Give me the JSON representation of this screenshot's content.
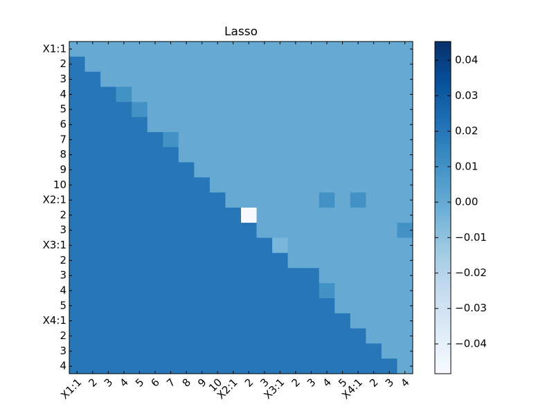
{
  "chart_data": {
    "type": "heatmap",
    "title": "Lasso",
    "x_categories": [
      "X1:1",
      "2",
      "3",
      "4",
      "5",
      "6",
      "7",
      "8",
      "9",
      "10",
      "X2:1",
      "2",
      "3",
      "X3:1",
      "2",
      "3",
      "4",
      "5",
      "X4:1",
      "2",
      "3",
      "4"
    ],
    "y_categories": [
      "X1:1",
      "2",
      "3",
      "4",
      "5",
      "6",
      "7",
      "8",
      "9",
      "10",
      "X2:1",
      "2",
      "3",
      "X3:1",
      "2",
      "3",
      "4",
      "5",
      "X4:1",
      "2",
      "3",
      "4"
    ],
    "values": [
      [
        0,
        0,
        0,
        0,
        0,
        0,
        0,
        0,
        0,
        0,
        0,
        0,
        0,
        0,
        0,
        0,
        0,
        0,
        0,
        0,
        0,
        0
      ],
      [
        0.02,
        0,
        0,
        0,
        0,
        0,
        0,
        0,
        0,
        0,
        0,
        0,
        0,
        0,
        0,
        0,
        0,
        0,
        0,
        0,
        0,
        0
      ],
      [
        0.02,
        0.02,
        0,
        0,
        0,
        0,
        0,
        0,
        0,
        0,
        0,
        0,
        0,
        0,
        0,
        0,
        0,
        0,
        0,
        0,
        0,
        0
      ],
      [
        0.02,
        0.02,
        0.02,
        0.01,
        0,
        0,
        0,
        0,
        0,
        0,
        0,
        0,
        0,
        0,
        0,
        0,
        0,
        0,
        0,
        0,
        0,
        0
      ],
      [
        0.02,
        0.02,
        0.02,
        0.02,
        0.01,
        0,
        0,
        0,
        0,
        0,
        0,
        0,
        0,
        0,
        0,
        0,
        0,
        0,
        0,
        0,
        0,
        0
      ],
      [
        0.02,
        0.02,
        0.02,
        0.02,
        0.02,
        0,
        0,
        0,
        0,
        0,
        0,
        0,
        0,
        0,
        0,
        0,
        0,
        0,
        0,
        0,
        0,
        0
      ],
      [
        0.02,
        0.02,
        0.02,
        0.02,
        0.02,
        0.02,
        0.01,
        0,
        0,
        0,
        0,
        0,
        0,
        0,
        0,
        0,
        0,
        0,
        0,
        0,
        0,
        0
      ],
      [
        0.02,
        0.02,
        0.02,
        0.02,
        0.02,
        0.02,
        0.02,
        0,
        0,
        0,
        0,
        0,
        0,
        0,
        0,
        0,
        0,
        0,
        0,
        0,
        0,
        0
      ],
      [
        0.02,
        0.02,
        0.02,
        0.02,
        0.02,
        0.02,
        0.02,
        0.02,
        0,
        0,
        0,
        0,
        0,
        0,
        0,
        0,
        0,
        0,
        0,
        0,
        0,
        0
      ],
      [
        0.02,
        0.02,
        0.02,
        0.02,
        0.02,
        0.02,
        0.02,
        0.02,
        0.02,
        0,
        0,
        0,
        0,
        0,
        0,
        0,
        0,
        0,
        0,
        0,
        0,
        0
      ],
      [
        0.02,
        0.02,
        0.02,
        0.02,
        0.02,
        0.02,
        0.02,
        0.02,
        0.02,
        0.02,
        0,
        0,
        0,
        0,
        0,
        0,
        0.01,
        0,
        0.01,
        0,
        0,
        0
      ],
      [
        0.02,
        0.02,
        0.02,
        0.02,
        0.02,
        0.02,
        0.02,
        0.02,
        0.02,
        0.02,
        0.02,
        -0.048,
        0,
        0,
        0,
        0,
        0,
        0,
        0,
        0,
        0,
        0
      ],
      [
        0.02,
        0.02,
        0.02,
        0.02,
        0.02,
        0.02,
        0.02,
        0.02,
        0.02,
        0.02,
        0.02,
        0.02,
        0,
        0,
        0,
        0,
        0,
        0,
        0,
        0,
        0,
        0.01
      ],
      [
        0.02,
        0.02,
        0.02,
        0.02,
        0.02,
        0.02,
        0.02,
        0.02,
        0.02,
        0.02,
        0.02,
        0.02,
        0.02,
        -0.005,
        0,
        0,
        0,
        0,
        0,
        0,
        0,
        0
      ],
      [
        0.02,
        0.02,
        0.02,
        0.02,
        0.02,
        0.02,
        0.02,
        0.02,
        0.02,
        0.02,
        0.02,
        0.02,
        0.02,
        0.02,
        0,
        0,
        0,
        0,
        0,
        0,
        0,
        0
      ],
      [
        0.02,
        0.02,
        0.02,
        0.02,
        0.02,
        0.02,
        0.02,
        0.02,
        0.02,
        0.02,
        0.02,
        0.02,
        0.02,
        0.02,
        0.02,
        0.02,
        0,
        0,
        0,
        0,
        0,
        0
      ],
      [
        0.02,
        0.02,
        0.02,
        0.02,
        0.02,
        0.02,
        0.02,
        0.02,
        0.02,
        0.02,
        0.02,
        0.02,
        0.02,
        0.02,
        0.02,
        0.02,
        0.01,
        0,
        0,
        0,
        0,
        0
      ],
      [
        0.02,
        0.02,
        0.02,
        0.02,
        0.02,
        0.02,
        0.02,
        0.02,
        0.02,
        0.02,
        0.02,
        0.02,
        0.02,
        0.02,
        0.02,
        0.02,
        0.02,
        0,
        0,
        0,
        0,
        0
      ],
      [
        0.02,
        0.02,
        0.02,
        0.02,
        0.02,
        0.02,
        0.02,
        0.02,
        0.02,
        0.02,
        0.02,
        0.02,
        0.02,
        0.02,
        0.02,
        0.02,
        0.02,
        0.02,
        0,
        0,
        0,
        0
      ],
      [
        0.02,
        0.02,
        0.02,
        0.02,
        0.02,
        0.02,
        0.02,
        0.02,
        0.02,
        0.02,
        0.02,
        0.02,
        0.02,
        0.02,
        0.02,
        0.02,
        0.02,
        0.02,
        0.02,
        0,
        0,
        0
      ],
      [
        0.02,
        0.02,
        0.02,
        0.02,
        0.02,
        0.02,
        0.02,
        0.02,
        0.02,
        0.02,
        0.02,
        0.02,
        0.02,
        0.02,
        0.02,
        0.02,
        0.02,
        0.02,
        0.02,
        0.02,
        0,
        0
      ],
      [
        0.02,
        0.02,
        0.02,
        0.02,
        0.02,
        0.02,
        0.02,
        0.02,
        0.02,
        0.02,
        0.02,
        0.02,
        0.02,
        0.02,
        0.02,
        0.02,
        0.02,
        0.02,
        0.02,
        0.02,
        0.02,
        0
      ]
    ],
    "colormap": [
      "#f7fbff",
      "#deebf7",
      "#c6dbef",
      "#9ecae1",
      "#6baed6",
      "#4292c6",
      "#2171b5",
      "#08519c",
      "#08306b"
    ],
    "clim": [
      -0.0484,
      0.0453
    ],
    "cticks": [
      {
        "value": -0.04,
        "label": "−0.04"
      },
      {
        "value": -0.03,
        "label": "−0.03"
      },
      {
        "value": -0.02,
        "label": "−0.02"
      },
      {
        "value": -0.01,
        "label": "−0.01"
      },
      {
        "value": 0,
        "label": "0.00"
      },
      0.01,
      0.02,
      0.03,
      0.04
    ]
  }
}
